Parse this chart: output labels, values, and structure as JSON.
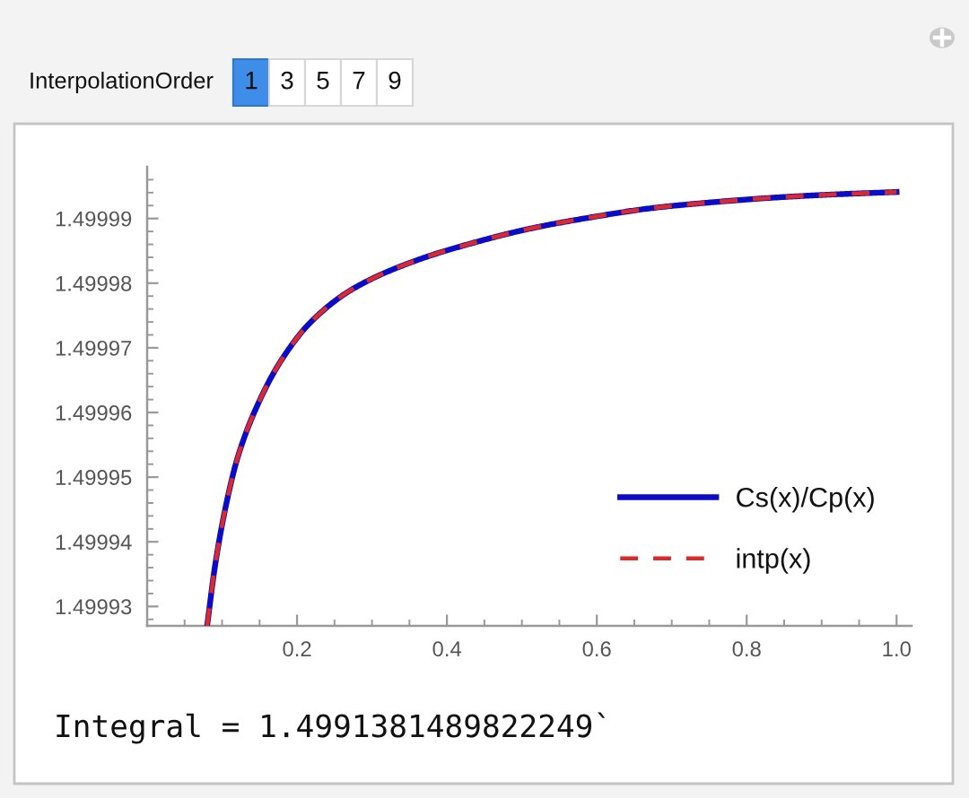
{
  "chart_data": {
    "type": "line",
    "x": [
      0.08,
      0.0909,
      0.1053,
      0.1212,
      0.1467,
      0.1786,
      0.2185,
      0.2743,
      0.354,
      0.434,
      0.5136,
      0.5933,
      0.673,
      0.753,
      0.8325,
      0.912,
      1.0
    ],
    "series": [
      {
        "name": "Cs(x)/Cp(x)",
        "color": "#0c0cc4",
        "line_style": "solid",
        "values": [
          1.499927,
          1.4999365,
          1.4999457,
          1.4999532,
          1.499961,
          1.499968,
          1.499974,
          1.4999791,
          1.4999833,
          1.4999862,
          1.4999885,
          1.4999902,
          1.4999916,
          1.4999925,
          1.4999932,
          1.4999937,
          1.4999941
        ]
      },
      {
        "name": "intp(x)",
        "color": "#dc2a2a",
        "line_style": "dashed",
        "values": [
          1.499927,
          1.4999365,
          1.4999457,
          1.4999532,
          1.499961,
          1.499968,
          1.499974,
          1.4999791,
          1.4999833,
          1.4999862,
          1.4999885,
          1.4999902,
          1.4999916,
          1.4999925,
          1.4999932,
          1.4999937,
          1.4999941
        ]
      }
    ],
    "xlim": [
      0,
      1.02
    ],
    "ylim": [
      1.499927,
      1.499998
    ],
    "xticks": [
      {
        "value": 0.05,
        "label": null
      },
      {
        "value": 0.1,
        "label": null
      },
      {
        "value": 0.15,
        "label": null
      },
      0.2,
      {
        "value": 0.25,
        "label": null
      },
      {
        "value": 0.3,
        "label": null
      },
      {
        "value": 0.35,
        "label": null
      },
      0.4,
      {
        "value": 0.45,
        "label": null
      },
      {
        "value": 0.5,
        "label": null
      },
      {
        "value": 0.55,
        "label": null
      },
      0.6,
      {
        "value": 0.65,
        "label": null
      },
      {
        "value": 0.7,
        "label": null
      },
      {
        "value": 0.75,
        "label": null
      },
      0.8,
      {
        "value": 0.85,
        "label": null
      },
      {
        "value": 0.9,
        "label": null
      },
      {
        "value": 0.95,
        "label": null
      },
      {
        "value": 1.0,
        "label": "1.0"
      }
    ],
    "yticks": [
      {
        "value": 1.499928,
        "label": null
      },
      1.49993,
      {
        "value": 1.499932,
        "label": null
      },
      {
        "value": 1.499934,
        "label": null
      },
      {
        "value": 1.499936,
        "label": null
      },
      {
        "value": 1.499938,
        "label": null
      },
      1.49994,
      {
        "value": 1.499942,
        "label": null
      },
      {
        "value": 1.499944,
        "label": null
      },
      {
        "value": 1.499946,
        "label": null
      },
      {
        "value": 1.499948,
        "label": null
      },
      1.49995,
      {
        "value": 1.499952,
        "label": null
      },
      {
        "value": 1.499954,
        "label": null
      },
      {
        "value": 1.499956,
        "label": null
      },
      {
        "value": 1.499958,
        "label": null
      },
      1.49996,
      {
        "value": 1.499962,
        "label": null
      },
      {
        "value": 1.499964,
        "label": null
      },
      {
        "value": 1.499966,
        "label": null
      },
      {
        "value": 1.499968,
        "label": null
      },
      1.49997,
      {
        "value": 1.499972,
        "label": null
      },
      {
        "value": 1.499974,
        "label": null
      },
      {
        "value": 1.499976,
        "label": null
      },
      {
        "value": 1.499978,
        "label": null
      },
      1.49998,
      {
        "value": 1.499982,
        "label": null
      },
      {
        "value": 1.499984,
        "label": null
      },
      {
        "value": 1.499986,
        "label": null
      },
      {
        "value": 1.499988,
        "label": null
      },
      1.49999,
      {
        "value": 1.499992,
        "label": null
      },
      {
        "value": 1.499994,
        "label": null
      },
      {
        "value": 1.499996,
        "label": null
      }
    ],
    "legend": "lower right",
    "annotations": [
      "InterpolationOrder",
      "1",
      "3",
      "5",
      "7",
      "9",
      "Integral = 1.4991381489822249`"
    ]
  }
}
